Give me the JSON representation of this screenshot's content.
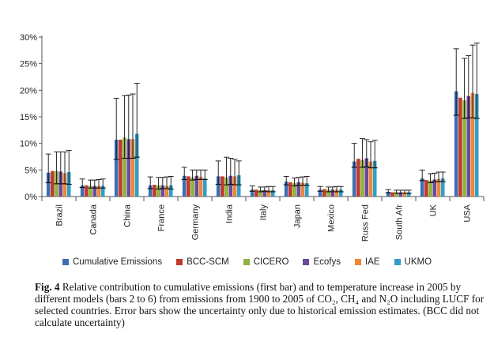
{
  "chart_data": {
    "type": "bar",
    "categories": [
      "Brazil",
      "Canada",
      "China",
      "France",
      "Germany",
      "India",
      "Italy",
      "Japan",
      "Mexico",
      "Russ Fed",
      "South Afr",
      "UK",
      "USA"
    ],
    "yticks": [
      "0%",
      "5%",
      "10%",
      "15%",
      "20%",
      "25%",
      "30%"
    ],
    "ylim": [
      0,
      30
    ],
    "grid": false,
    "legend_position": "bottom",
    "series": [
      {
        "name": "Cumulative Emissions",
        "color": "#3f6db1",
        "values": [
          4.5,
          2.1,
          10.7,
          2.1,
          3.9,
          3.8,
          1.3,
          2.8,
          1.3,
          6.6,
          0.9,
          3.4,
          19.8
        ],
        "err_low": [
          2.6,
          1.7,
          7.0,
          1.5,
          3.2,
          2.3,
          1.0,
          2.2,
          1.0,
          5.5,
          0.7,
          3.0,
          15.3
        ],
        "err_high": [
          8.0,
          3.3,
          18.5,
          3.7,
          5.5,
          6.7,
          2.0,
          3.8,
          1.9,
          10.0,
          1.3,
          5.0,
          27.8
        ]
      },
      {
        "name": "BCC-SCM",
        "color": "#c0392b",
        "values": [
          4.8,
          2.1,
          10.7,
          2.2,
          3.8,
          3.8,
          1.3,
          2.7,
          1.4,
          7.1,
          0.8,
          3.1,
          18.6
        ]
      },
      {
        "name": "CICERO",
        "color": "#8db33d",
        "values": [
          4.8,
          2.0,
          11.1,
          2.1,
          3.6,
          3.6,
          1.2,
          2.5,
          1.3,
          6.9,
          0.8,
          3.0,
          18.1
        ],
        "err_low": [
          2.4,
          1.6,
          7.2,
          1.4,
          3.1,
          2.2,
          0.9,
          2.0,
          0.9,
          5.5,
          0.6,
          2.6,
          14.7
        ],
        "err_high": [
          8.4,
          3.1,
          19.0,
          3.6,
          5.0,
          7.4,
          1.8,
          3.5,
          1.8,
          10.9,
          1.2,
          4.3,
          26.0
        ]
      },
      {
        "name": "Ecofys",
        "color": "#6a4a9c",
        "values": [
          4.7,
          2.0,
          10.8,
          2.1,
          3.9,
          3.9,
          1.2,
          2.7,
          1.3,
          7.2,
          0.8,
          3.2,
          18.9
        ],
        "err_low": [
          2.4,
          1.6,
          7.2,
          1.5,
          3.2,
          2.3,
          1.0,
          2.1,
          0.9,
          5.6,
          0.6,
          2.8,
          14.8
        ],
        "err_high": [
          8.4,
          3.1,
          19.1,
          3.6,
          5.0,
          7.2,
          1.8,
          3.6,
          1.8,
          10.7,
          1.2,
          4.4,
          26.5
        ]
      },
      {
        "name": "IAE",
        "color": "#ef8636",
        "values": [
          4.4,
          2.0,
          10.8,
          2.0,
          3.7,
          3.8,
          1.2,
          2.6,
          1.3,
          6.6,
          0.8,
          3.3,
          19.5
        ],
        "err_low": [
          2.4,
          1.6,
          7.2,
          1.5,
          3.2,
          2.2,
          0.9,
          2.1,
          0.9,
          5.4,
          0.6,
          2.8,
          14.8
        ],
        "err_high": [
          8.4,
          3.2,
          19.3,
          3.7,
          5.0,
          7.0,
          1.9,
          3.7,
          1.9,
          10.3,
          1.2,
          4.6,
          28.5
        ]
      },
      {
        "name": "UKMO",
        "color": "#2f9ec9",
        "values": [
          4.6,
          2.0,
          11.8,
          2.1,
          3.4,
          4.0,
          1.2,
          2.5,
          1.3,
          6.7,
          0.8,
          3.4,
          19.3
        ],
        "err_low": [
          2.3,
          1.6,
          7.4,
          1.4,
          3.2,
          2.2,
          0.9,
          2.1,
          0.9,
          5.4,
          0.6,
          2.8,
          14.7
        ],
        "err_high": [
          8.7,
          3.3,
          21.3,
          3.8,
          5.0,
          6.7,
          1.9,
          3.8,
          1.9,
          10.6,
          1.2,
          4.6,
          28.9
        ]
      }
    ]
  },
  "caption": {
    "label": "Fig. 4",
    "text": "Relative contribution to cumulative emissions (first bar) and to temperature increase in 2005 by different models (bars 2 to 6) from emissions from 1900 to 2005 of CO₂, CH₄ and N₂O including LUCF for selected countries. Error bars show the uncertainty only due to historical emission estimates. (BCC did not calculate uncertainty)"
  }
}
